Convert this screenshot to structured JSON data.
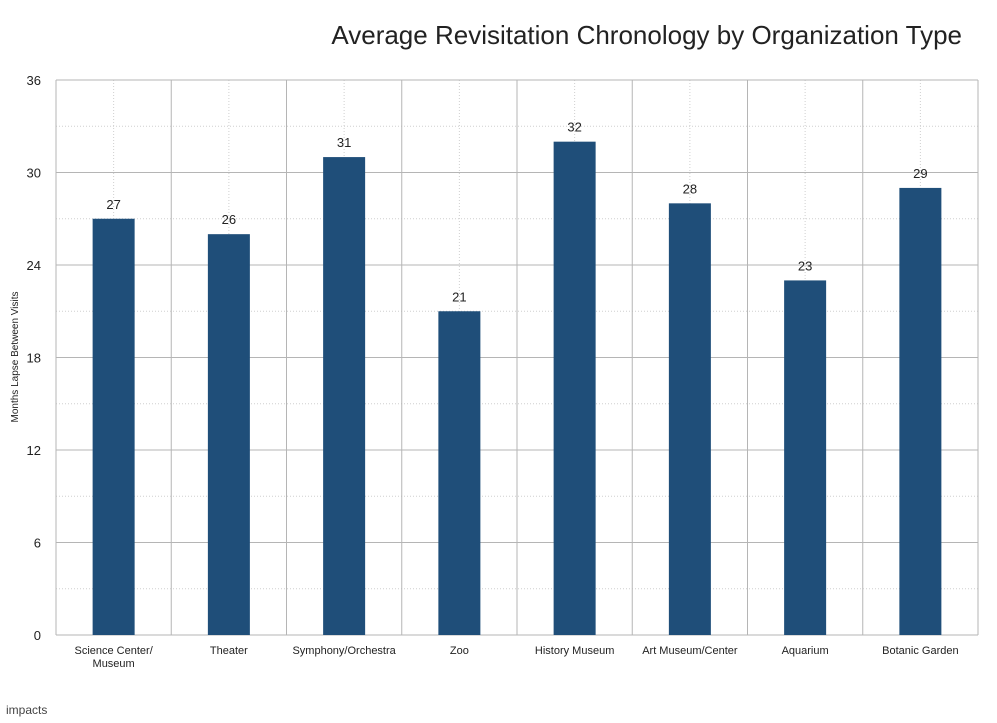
{
  "chart_data": {
    "type": "bar",
    "title": "Average Revisitation Chronology by Organization Type",
    "ylabel": "Months Lapse Between Visits",
    "xlabel": "",
    "categories": [
      [
        "Science Center/",
        "Museum"
      ],
      [
        "Theater"
      ],
      [
        "Symphony/Orchestra"
      ],
      [
        "Zoo"
      ],
      [
        "History Museum"
      ],
      [
        "Art Museum/Center"
      ],
      [
        "Aquarium"
      ],
      [
        "Botanic Garden"
      ]
    ],
    "values": [
      27,
      26,
      31,
      21,
      32,
      28,
      23,
      29
    ],
    "ylim": [
      0,
      36
    ],
    "yticks": [
      0,
      6,
      12,
      18,
      24,
      30,
      36
    ],
    "grid": true,
    "bar_color": "#1f4e79"
  },
  "footer": {
    "brand": "impacts"
  }
}
